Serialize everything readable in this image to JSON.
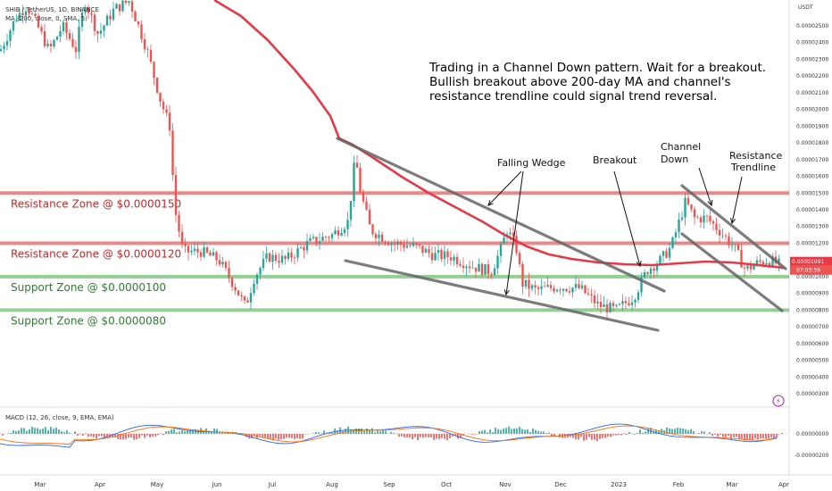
{
  "header": {
    "symbol_line": "SHIB / TetherUS, 1D, BINANCE",
    "ma_line": "MA (200, close, 0, SMA, 5)",
    "macd_line": "MACD (12, 26, close, 9, EMA, EMA)"
  },
  "axis": {
    "currency": "USDT",
    "macd_zero_label": "0.00000000",
    "macd_neg_label": "-0.00000200",
    "countdown": "07:03:59"
  },
  "chart_data": {
    "type": "candlestick",
    "price_axis": {
      "ticks": [
        "0.00002500",
        "0.00002400",
        "0.00002300",
        "0.00002200",
        "0.00002100",
        "0.00002000",
        "0.00001900",
        "0.00001800",
        "0.00001700",
        "0.00001600",
        "0.00001500",
        "0.00001400",
        "0.00001300",
        "0.00001200",
        "0.00001100",
        "0.00001000",
        "0.00000900",
        "0.00000800",
        "0.00000700",
        "0.00000600",
        "0.00000500",
        "0.00000400",
        "0.00000300"
      ],
      "last_price": "0.00001065",
      "ma_value": "0.00001091"
    },
    "time_axis": [
      "Mar",
      "Apr",
      "May",
      "Jun",
      "Jul",
      "Aug",
      "Sep",
      "Oct",
      "Nov",
      "Dec",
      "2023",
      "Feb",
      "Mar",
      "Apr"
    ],
    "zones": [
      {
        "label": "Resistance Zone @ $0.0000150",
        "price": 1.5e-05,
        "color": "#e57373",
        "text_color": "#c62828"
      },
      {
        "label": "Resistance Zone @ $0.0000120",
        "price": 1.2e-05,
        "color": "#e57373",
        "text_color": "#c62828"
      },
      {
        "label": "Support Zone @ $0.0000100",
        "price": 1e-05,
        "color": "#81c784",
        "text_color": "#2e7d32"
      },
      {
        "label": "Support Zone @ $0.0000080",
        "price": 8e-06,
        "color": "#81c784",
        "text_color": "#2e7d32"
      }
    ],
    "ma_200": [
      {
        "t": "Aug 2022",
        "price": 1.84e-05
      },
      {
        "t": "Sep 2022",
        "price": 1.6e-05
      },
      {
        "t": "Oct 2022",
        "price": 1.43e-05
      },
      {
        "t": "Nov 2022",
        "price": 1.22e-05
      },
      {
        "t": "Dec 2022",
        "price": 1.1e-05
      },
      {
        "t": "Jan 2023",
        "price": 1.08e-05
      },
      {
        "t": "Feb 2023",
        "price": 1.09e-05
      },
      {
        "t": "Mar 2023",
        "price": 1.09e-05
      },
      {
        "t": "Apr 2023",
        "price": 1.06e-05
      }
    ],
    "trendlines": [
      "Falling Wedge upper",
      "Falling Wedge lower",
      "Channel Down upper",
      "Channel Down lower"
    ],
    "annotations": [
      "Falling Wedge",
      "Breakout",
      "Channel Down",
      "Resistance Trendline"
    ],
    "note": "Trading in a Channel Down pattern. Wait for a breakout. Bullish breakout above 200-day MA and channel's resistance trendline could signal trend reversal.",
    "colors": {
      "up": "#26a69a",
      "down": "#ef5350",
      "ma": "#e53945",
      "trend": "#666666"
    }
  },
  "annotations": {
    "falling_wedge": "Falling Wedge",
    "breakout": "Breakout",
    "channel_down": [
      "Channel",
      "Down"
    ],
    "resistance_trendline": [
      "Resistance",
      "Trendline"
    ]
  }
}
